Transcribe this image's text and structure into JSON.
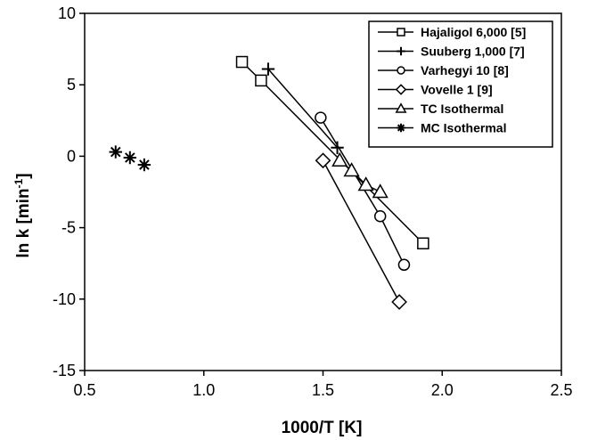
{
  "chart_data": {
    "type": "scatter",
    "xlabel": "1000/T [K]",
    "ylabel_main": "ln k [min",
    "ylabel_sup": "-1",
    "ylabel_close": "]",
    "xlim": [
      0.5,
      2.5
    ],
    "ylim": [
      -15,
      10
    ],
    "x_ticks": [
      0.5,
      1.0,
      1.5,
      2.0,
      2.5
    ],
    "x_tick_labels": [
      "0.5",
      "1.0",
      "1.5",
      "2.0",
      "2.5"
    ],
    "y_ticks": [
      -15,
      -10,
      -5,
      0,
      5,
      10
    ],
    "y_tick_labels": [
      "-15",
      "-10",
      "-5",
      "0",
      "5",
      "10"
    ],
    "grid": false,
    "legend_position": "top-right",
    "series": [
      {
        "name": "Hajaligol 6,000 [5]",
        "marker": "square",
        "line": true,
        "x": [
          1.16,
          1.24,
          1.92
        ],
        "y": [
          6.6,
          5.3,
          -6.1
        ]
      },
      {
        "name": "Suuberg 1,000 [7]",
        "marker": "plus",
        "line": true,
        "x": [
          1.27,
          1.56
        ],
        "y": [
          6.1,
          0.6
        ]
      },
      {
        "name": "Varhegyi 10 [8]",
        "marker": "circle",
        "line": true,
        "x": [
          1.49,
          1.74,
          1.84
        ],
        "y": [
          2.7,
          -4.2,
          -7.6
        ]
      },
      {
        "name": "Vovelle 1 [9]",
        "marker": "diamond",
        "line": true,
        "x": [
          1.5,
          1.82
        ],
        "y": [
          -0.3,
          -10.2
        ]
      },
      {
        "name": "TC Isothermal",
        "marker": "triangle",
        "line": true,
        "x": [
          1.57,
          1.62,
          1.68,
          1.74
        ],
        "y": [
          -0.3,
          -1.0,
          -2.0,
          -2.5
        ]
      },
      {
        "name": "MC Isothermal",
        "marker": "asterisk",
        "line": false,
        "x": [
          0.63,
          0.69,
          0.75
        ],
        "y": [
          0.3,
          -0.1,
          -0.6
        ]
      }
    ]
  }
}
